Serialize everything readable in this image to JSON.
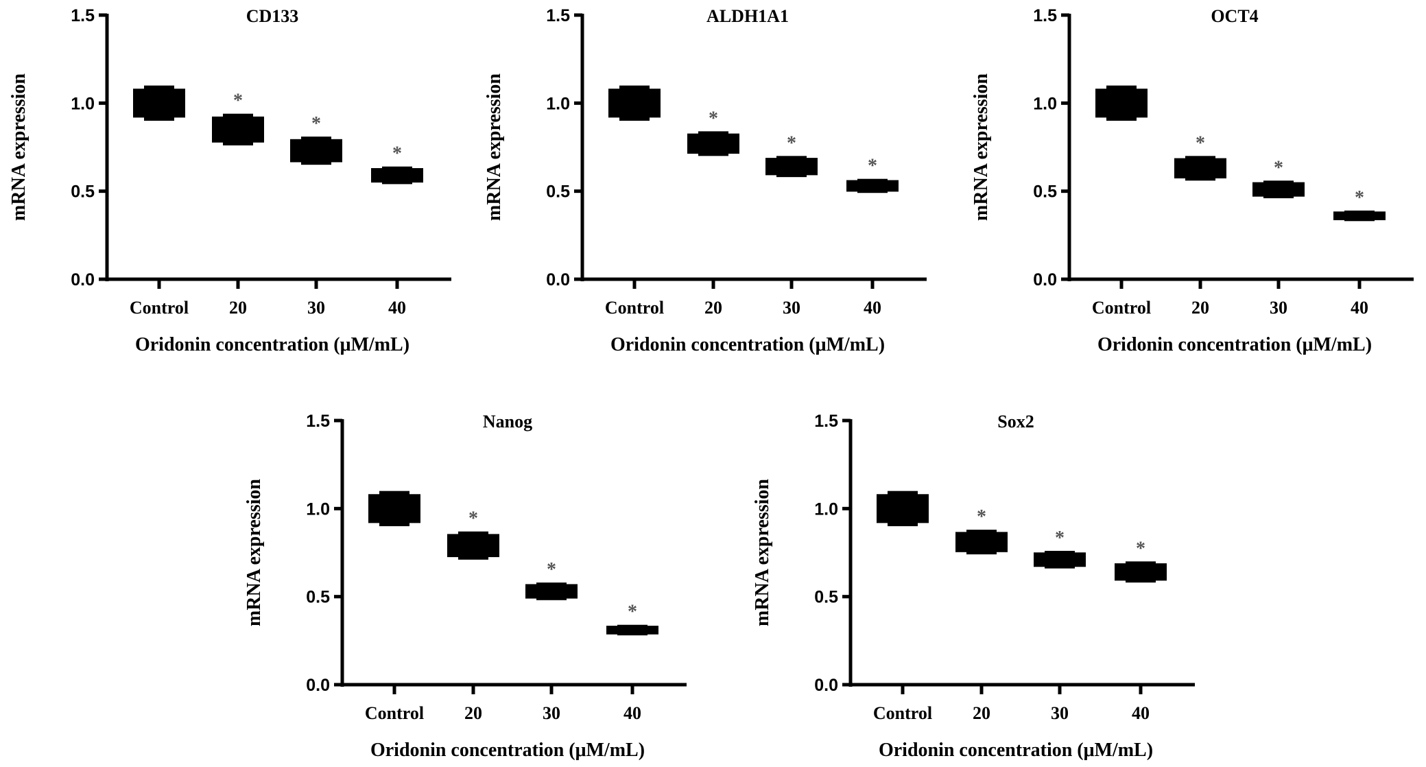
{
  "chart_data": [
    {
      "type": "scatter",
      "title": "CD133",
      "xlabel": "Oridonin concentration (μM/mL)",
      "ylabel": "mRNA expression",
      "categories": [
        "Control",
        "20",
        "30",
        "40"
      ],
      "values": [
        1.0,
        0.85,
        0.73,
        0.59
      ],
      "errors": [
        0.1,
        0.09,
        0.08,
        0.05
      ],
      "significance": [
        "",
        "*",
        "*",
        "*"
      ],
      "ylim": [
        0,
        1.5
      ],
      "yticks": [
        "0.0",
        "0.5",
        "1.0",
        "1.5"
      ],
      "grid": false
    },
    {
      "type": "scatter",
      "title": "ALDH1A1",
      "xlabel": "Oridonin concentration (μM/mL)",
      "ylabel": "mRNA expression",
      "categories": [
        "Control",
        "20",
        "30",
        "40"
      ],
      "values": [
        1.0,
        0.77,
        0.64,
        0.53
      ],
      "errors": [
        0.1,
        0.07,
        0.06,
        0.04
      ],
      "significance": [
        "",
        "*",
        "*",
        "*"
      ],
      "ylim": [
        0,
        1.5
      ],
      "yticks": [
        "0.0",
        "0.5",
        "1.0",
        "1.5"
      ],
      "grid": false
    },
    {
      "type": "scatter",
      "title": "OCT4",
      "xlabel": "Oridonin concentration (μM/mL)",
      "ylabel": "mRNA expression",
      "categories": [
        "Control",
        "20",
        "30",
        "40"
      ],
      "values": [
        1.0,
        0.63,
        0.51,
        0.36
      ],
      "errors": [
        0.1,
        0.07,
        0.05,
        0.03
      ],
      "significance": [
        "",
        "*",
        "*",
        "*"
      ],
      "ylim": [
        0,
        1.5
      ],
      "yticks": [
        "0.0",
        "0.5",
        "1.0",
        "1.5"
      ],
      "grid": false
    },
    {
      "type": "scatter",
      "title": "Nanog",
      "xlabel": "Oridonin concentration (μM/mL)",
      "ylabel": "mRNA expression",
      "categories": [
        "Control",
        "20",
        "30",
        "40"
      ],
      "values": [
        1.0,
        0.79,
        0.53,
        0.31
      ],
      "errors": [
        0.1,
        0.08,
        0.05,
        0.03
      ],
      "significance": [
        "",
        "*",
        "*",
        "*"
      ],
      "ylim": [
        0,
        1.5
      ],
      "yticks": [
        "0.0",
        "0.5",
        "1.0",
        "1.5"
      ],
      "grid": false
    },
    {
      "type": "scatter",
      "title": "Sox2",
      "xlabel": "Oridonin concentration (μM/mL)",
      "ylabel": "mRNA expression",
      "categories": [
        "Control",
        "20",
        "30",
        "40"
      ],
      "values": [
        1.0,
        0.81,
        0.71,
        0.64
      ],
      "errors": [
        0.1,
        0.07,
        0.05,
        0.06
      ],
      "significance": [
        "",
        "*",
        "*",
        "*"
      ],
      "ylim": [
        0,
        1.5
      ],
      "yticks": [
        "0.0",
        "0.5",
        "1.0",
        "1.5"
      ],
      "grid": false
    }
  ],
  "colors": {
    "marker": "#000000",
    "asterisk": "#555555",
    "axis": "#000000"
  }
}
